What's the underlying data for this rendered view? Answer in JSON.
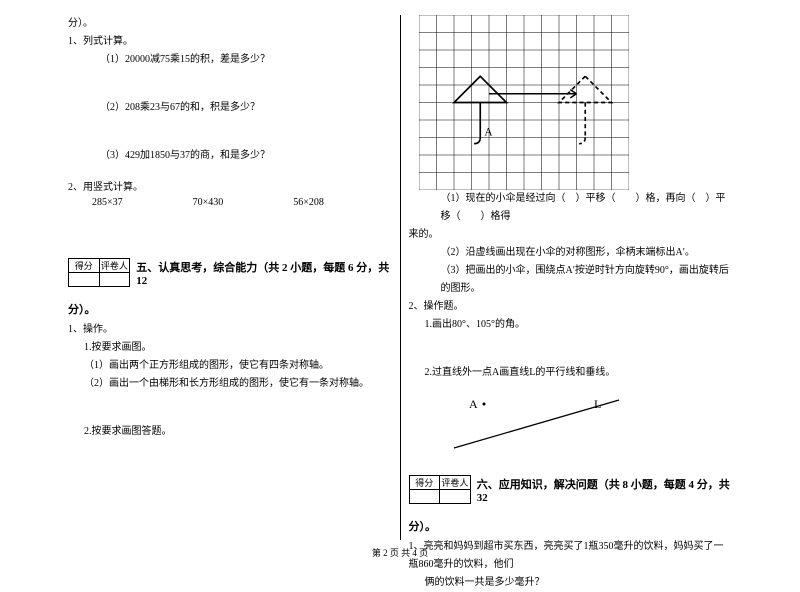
{
  "left": {
    "fen": "分）。",
    "q1": "1、列式计算。",
    "q1_1": "（1）20000减75乘15的积，差是多少？",
    "q1_2": "（2）208乘23与67的和，积是多少？",
    "q1_3": "（3）429加1850与37的商，和是多少？",
    "q2": "2、用竖式计算。",
    "calc1": "285×37",
    "calc2": "70×430",
    "calc3": "56×208",
    "score_l": "得分",
    "score_r": "评卷人",
    "section5": "五、认真思考，综合能力（共 2 小题，每题 6 分，共 12",
    "fen2": "分）。",
    "op1": "1、操作。",
    "op1_1": "1.按要求画图。",
    "op1_1a": "（1）画出两个正方形组成的图形，使它有四条对称轴。",
    "op1_1b": "（2）画出一个由梯形和长方形组成的图形，使它有一条对称轴。",
    "op1_2": "2.按要求画图答题。"
  },
  "right": {
    "grid": {
      "cols": 12,
      "rows": 10,
      "cell": 17,
      "grid_color": "#000000",
      "umbrella_solid": {
        "apex_col": 3.5,
        "base_row": 5,
        "width": 3,
        "handle_rows": 2
      },
      "umbrella_dash": {
        "apex_col": 9.5,
        "base_row": 5,
        "width": 3,
        "handle_rows": 2
      },
      "arrow_from_col": 4,
      "arrow_to_col": 9,
      "arrow_row": 4.5,
      "label_A": "A"
    },
    "r1": "（1）现在的小伞是经过向（　）平移（　　）格，再向（　）平移（　　）格得",
    "r1b": "来的。",
    "r2": "（2）沿虚线画出现在小伞的对称图形，伞柄末端标出A′。",
    "r3": "（3）把画出的小伞，围绕点A′按逆时针方向旋转90°，画出旋转后的图形。",
    "op2": "2、操作题。",
    "op2_1": "1.画出80°、105°的角。",
    "op2_2": "2.过直线外一点A画直线L的平行线和垂线。",
    "point_label": "A",
    "line_label": "L",
    "score_l": "得分",
    "score_r": "评卷人",
    "section6": "六、应用知识，解决问题（共 8 小题，每题 4 分，共 32",
    "fen": "分）。",
    "q1": "1、亮亮和妈妈到超市买东西，亮亮买了1瓶350毫升的饮料，妈妈买了一瓶860毫升的饮料，他们",
    "q1b": "俩的饮料一共是多少毫升？"
  },
  "footer": "第 2 页 共 4 页"
}
